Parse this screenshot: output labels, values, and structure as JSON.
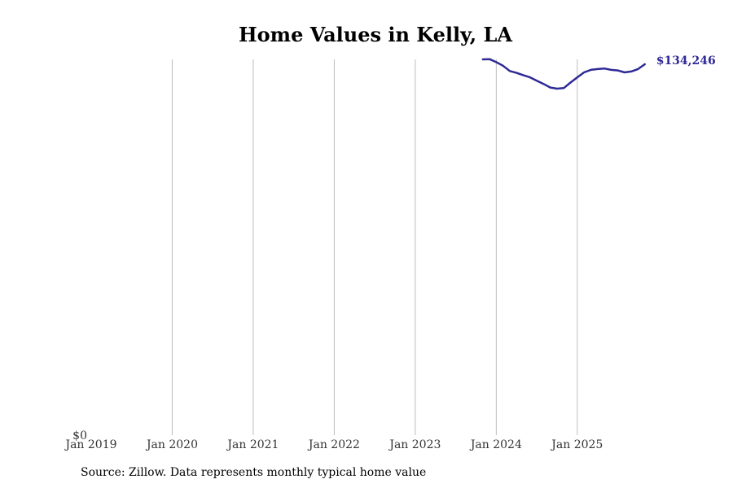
{
  "chart_data": {
    "type": "line",
    "title": "Home Values in Kelly, LA",
    "xlabel": "",
    "ylabel": "",
    "x_ticks": [
      "Jan 2019",
      "Jan 2020",
      "Jan 2021",
      "Jan 2022",
      "Jan 2023",
      "Jan 2024",
      "Jan 2025"
    ],
    "y_ticks": [
      "$0"
    ],
    "ylim": [
      0,
      136000
    ],
    "xlim": [
      "2019-01",
      "2025-12"
    ],
    "grid": "vertical",
    "series": [
      {
        "color": "#2e2a96",
        "end_label": "$134,246",
        "points": [
          {
            "x": "2023-11",
            "y": 136000
          },
          {
            "x": "2023-12",
            "y": 136100
          },
          {
            "x": "2024-01",
            "y": 135000
          },
          {
            "x": "2024-02",
            "y": 133700
          },
          {
            "x": "2024-03",
            "y": 131800
          },
          {
            "x": "2024-04",
            "y": 131100
          },
          {
            "x": "2024-05",
            "y": 130300
          },
          {
            "x": "2024-06",
            "y": 129500
          },
          {
            "x": "2024-07",
            "y": 128300
          },
          {
            "x": "2024-08",
            "y": 127100
          },
          {
            "x": "2024-09",
            "y": 125800
          },
          {
            "x": "2024-10",
            "y": 125400
          },
          {
            "x": "2024-11",
            "y": 125600
          },
          {
            "x": "2024-12",
            "y": 127600
          },
          {
            "x": "2025-01",
            "y": 129500
          },
          {
            "x": "2025-02",
            "y": 131300
          },
          {
            "x": "2025-03",
            "y": 132200
          },
          {
            "x": "2025-04",
            "y": 132500
          },
          {
            "x": "2025-05",
            "y": 132700
          },
          {
            "x": "2025-06",
            "y": 132200
          },
          {
            "x": "2025-07",
            "y": 132000
          },
          {
            "x": "2025-08",
            "y": 131300
          },
          {
            "x": "2025-09",
            "y": 131600
          },
          {
            "x": "2025-10",
            "y": 132500
          },
          {
            "x": "2025-11",
            "y": 134246
          }
        ]
      }
    ]
  },
  "footer": {
    "source": "Source: Zillow. Data represents monthly typical home value"
  }
}
